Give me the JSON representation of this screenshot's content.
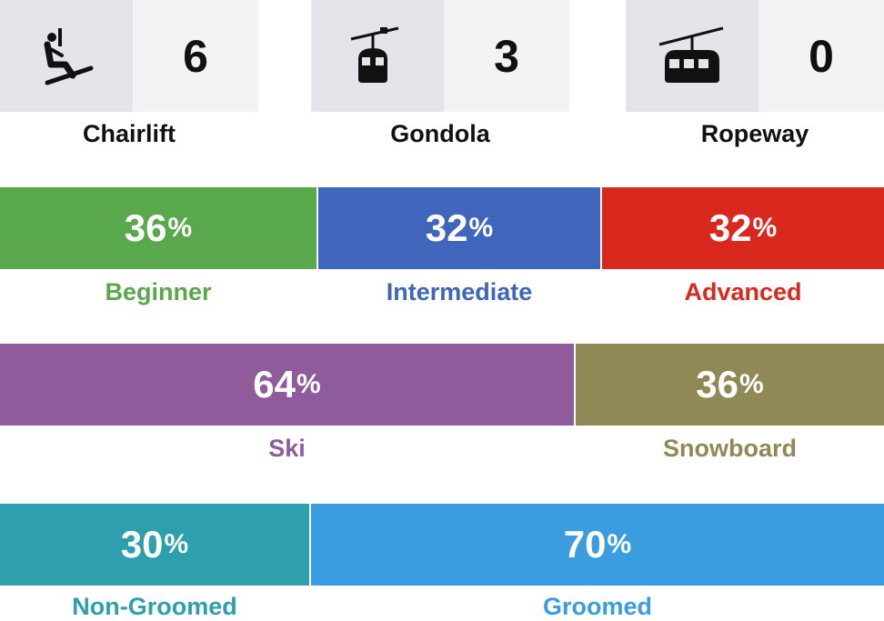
{
  "lifts": [
    {
      "label": "Chairlift",
      "count": "6",
      "icon": "chairlift-icon"
    },
    {
      "label": "Gondola",
      "count": "3",
      "icon": "gondola-icon"
    },
    {
      "label": "Ropeway",
      "count": "0",
      "icon": "ropeway-icon"
    }
  ],
  "difficulty": [
    {
      "label": "Beginner",
      "value": "36",
      "unit": "%",
      "color": "#59a84b"
    },
    {
      "label": "Intermediate",
      "value": "32",
      "unit": "%",
      "color": "#4066bb"
    },
    {
      "label": "Advanced",
      "value": "32",
      "unit": "%",
      "color": "#d9291f"
    }
  ],
  "riders": [
    {
      "label": "Ski",
      "value": "64",
      "unit": "%",
      "color": "#8f5b9c"
    },
    {
      "label": "Snowboard",
      "value": "36",
      "unit": "%",
      "color": "#8f8a55"
    }
  ],
  "grooming": [
    {
      "label": "Non-Groomed",
      "value": "30",
      "unit": "%",
      "color": "#2d9fad"
    },
    {
      "label": "Groomed",
      "value": "70",
      "unit": "%",
      "color": "#3a9de0"
    }
  ]
}
